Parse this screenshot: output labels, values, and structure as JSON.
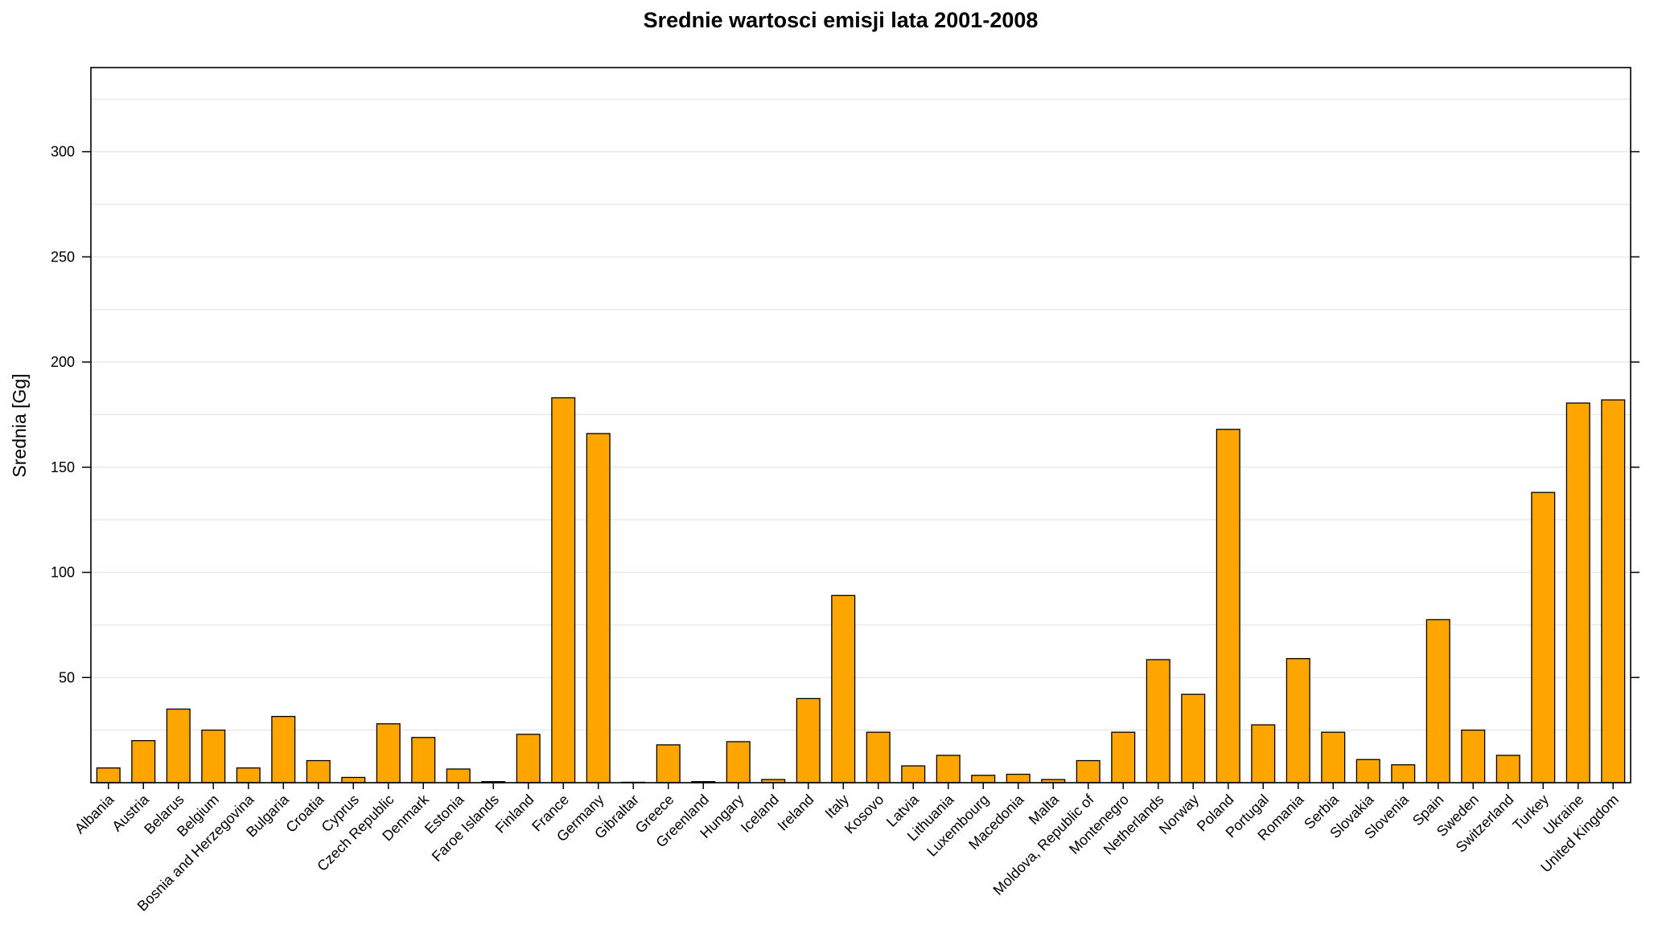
{
  "chart_data": {
    "type": "bar",
    "title": "Srednie wartosci emisji lata 2001-2008",
    "xlabel": "",
    "ylabel": "Srednia [Gg]",
    "ylim": [
      0,
      340
    ],
    "yticks": [
      50,
      100,
      150,
      200,
      250,
      300
    ],
    "grid": "horizontal",
    "bar_color": "#FFA500",
    "bar_edge_color": "#000000",
    "grid_color": "#e6e6e6",
    "categories": [
      "Albania",
      "Austria",
      "Belarus",
      "Belgium",
      "Bosnia and Herzegovina",
      "Bulgaria",
      "Croatia",
      "Cyprus",
      "Czech Republic",
      "Denmark",
      "Estonia",
      "Faroe Islands",
      "Finland",
      "France",
      "Germany",
      "Gibraltar",
      "Greece",
      "Greenland",
      "Hungary",
      "Iceland",
      "Ireland",
      "Italy",
      "Kosovo",
      "Latvia",
      "Lithuania",
      "Luxembourg",
      "Macedonia",
      "Malta",
      "Moldova, Republic of",
      "Montenegro",
      "Netherlands",
      "Norway",
      "Poland",
      "Portugal",
      "Romania",
      "Serbia",
      "Slovakia",
      "Slovenia",
      "Spain",
      "Sweden",
      "Switzerland",
      "Turkey",
      "Ukraine",
      "United Kingdom"
    ],
    "values": [
      7,
      20,
      35,
      25,
      7,
      31.5,
      10.5,
      2.5,
      28,
      21.5,
      6.5,
      0.5,
      23,
      183,
      166,
      0.2,
      18,
      0.5,
      19.5,
      1.5,
      40,
      89,
      24,
      8,
      13,
      3.5,
      4,
      1.5,
      10.5,
      24,
      58.5,
      42,
      168,
      27.5,
      59,
      24,
      11,
      8.5,
      77.5,
      25,
      13,
      138,
      180.5,
      182
    ]
  }
}
